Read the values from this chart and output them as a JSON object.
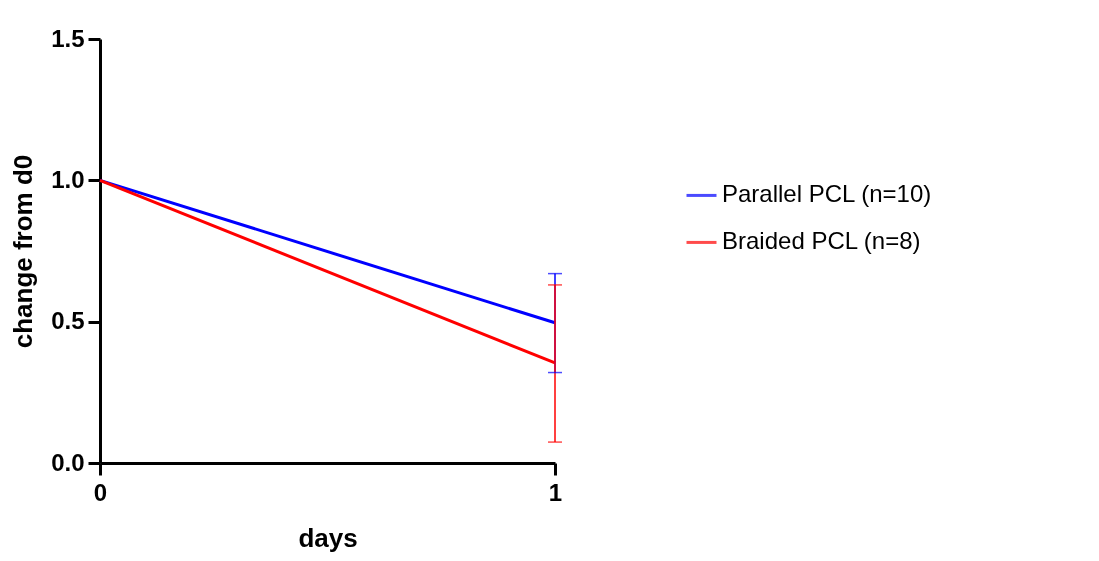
{
  "chart_data": {
    "type": "line",
    "xlabel": "days",
    "ylabel": "change from d0",
    "x": [
      0,
      1
    ],
    "series": [
      {
        "name": "Parallel PCL (n=10)",
        "color": "#0000ff",
        "values": [
          1.0,
          0.496
        ],
        "errors": [
          null,
          [
            0.32,
            0.67
          ]
        ]
      },
      {
        "name": "Braided PCL (n=8)",
        "color": "#ff0000",
        "values": [
          1.0,
          0.354
        ],
        "errors": [
          null,
          [
            0.074,
            0.63
          ]
        ]
      }
    ],
    "xlim": [
      0,
      1
    ],
    "xticks": [
      0,
      1
    ],
    "ylim": [
      0,
      1.5
    ],
    "yticks": [
      {
        "value": 0,
        "label": "0.0"
      },
      0.5,
      {
        "value": 1,
        "label": "1.0"
      },
      1.5
    ],
    "legend": "right",
    "grid": false,
    "marker": "none",
    "line_style": "solid"
  }
}
